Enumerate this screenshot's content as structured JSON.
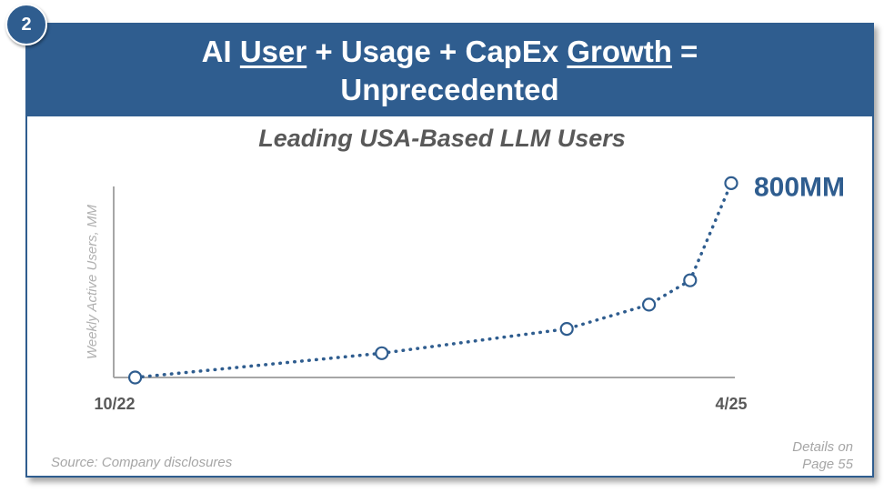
{
  "badge": {
    "number": "2"
  },
  "header": {
    "line1": [
      {
        "text": "AI ",
        "underline": false
      },
      {
        "text": "User",
        "underline": true
      },
      {
        "text": " + Usage + CapEx ",
        "underline": false
      },
      {
        "text": "Growth",
        "underline": true
      },
      {
        "text": " =",
        "underline": false
      }
    ],
    "line2": "Unprecedented"
  },
  "chart_data": {
    "type": "line",
    "title": "Leading USA-Based LLM Users",
    "ylabel": "Weekly Active Users, MM",
    "x_tick_labels": [
      "10/22",
      "4/25"
    ],
    "xlim": [
      "10/22",
      "4/25"
    ],
    "ylim": [
      0,
      850
    ],
    "grid": false,
    "series": [
      {
        "x": [
          "11/22",
          "11/23",
          "8/24",
          "12/24",
          "2/25",
          "4/25"
        ],
        "y": [
          0,
          100,
          200,
          300,
          400,
          800
        ]
      }
    ],
    "annotations": [
      {
        "text": "800MM",
        "at": "last-point"
      }
    ],
    "color": "#2f5d8f",
    "axis_color": "#a6a6a6"
  },
  "footer": {
    "source": "Source: Company disclosures",
    "details_line1": "Details on",
    "details_line2": "Page 55"
  }
}
